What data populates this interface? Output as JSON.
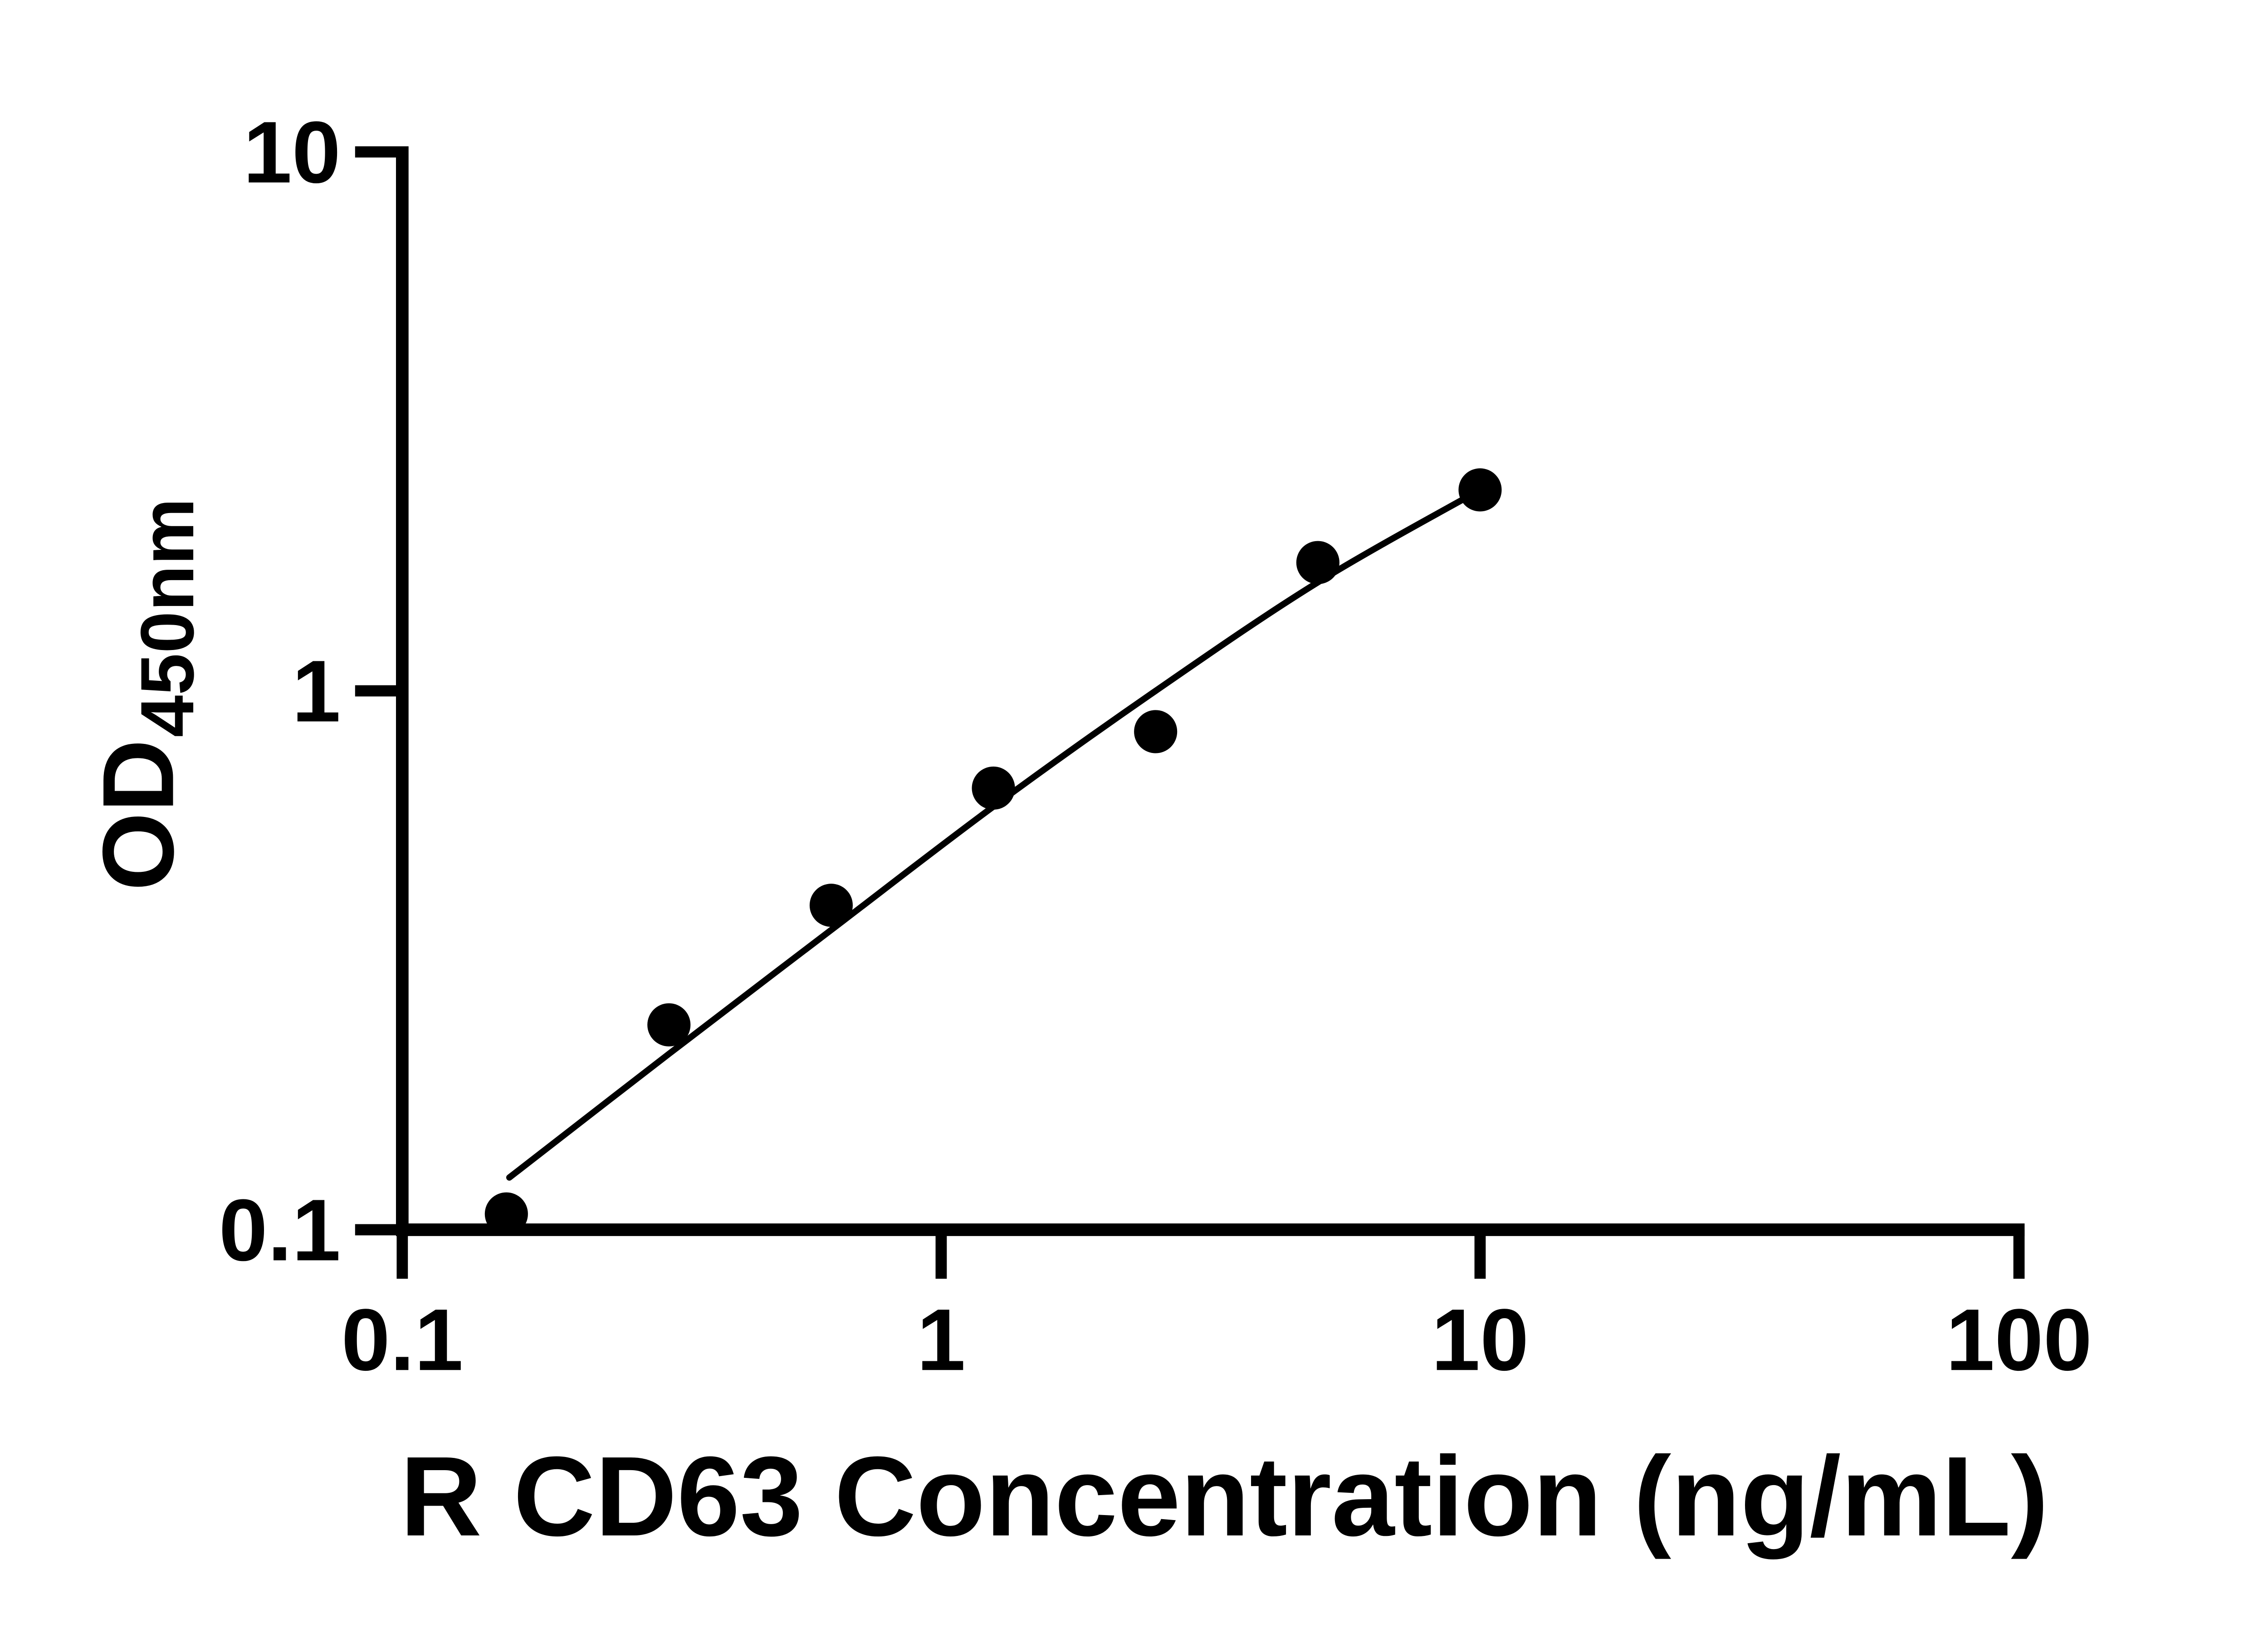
{
  "figure": {
    "background_color": "#ffffff",
    "ink_color": "#000000"
  },
  "chart_data": {
    "type": "scatter",
    "title": "",
    "xlabel": "R CD63 Concentration (ng/mL)",
    "ylabel_main": "OD",
    "ylabel_sub": "450nm",
    "x_scale": "log",
    "y_scale": "log",
    "xlim": [
      0.1,
      100
    ],
    "ylim": [
      0.1,
      10
    ],
    "grid": false,
    "legend": "none",
    "x_ticks": [
      {
        "value": 0.1,
        "label": "0.1"
      },
      {
        "value": 1,
        "label": "1"
      },
      {
        "value": 10,
        "label": "10"
      },
      {
        "value": 100,
        "label": "100"
      }
    ],
    "y_ticks": [
      {
        "value": 0.1,
        "label": "0.1"
      },
      {
        "value": 1,
        "label": "1"
      },
      {
        "value": 10,
        "label": "10"
      }
    ],
    "series": [
      {
        "name": "standard-curve-points",
        "marker": "filled-circle",
        "points": [
          {
            "x": 0.156,
            "y": 0.107
          },
          {
            "x": 0.3125,
            "y": 0.24
          },
          {
            "x": 0.625,
            "y": 0.4
          },
          {
            "x": 1.25,
            "y": 0.66
          },
          {
            "x": 2.5,
            "y": 0.84
          },
          {
            "x": 5,
            "y": 1.73
          },
          {
            "x": 10,
            "y": 2.36
          }
        ]
      }
    ],
    "fit_curve": [
      {
        "x": 0.158,
        "y": 0.125
      },
      {
        "x": 0.3125,
        "y": 0.212
      },
      {
        "x": 0.625,
        "y": 0.36
      },
      {
        "x": 1.25,
        "y": 0.61
      },
      {
        "x": 2.5,
        "y": 1.0
      },
      {
        "x": 5,
        "y": 1.59
      },
      {
        "x": 10,
        "y": 2.36
      }
    ]
  }
}
